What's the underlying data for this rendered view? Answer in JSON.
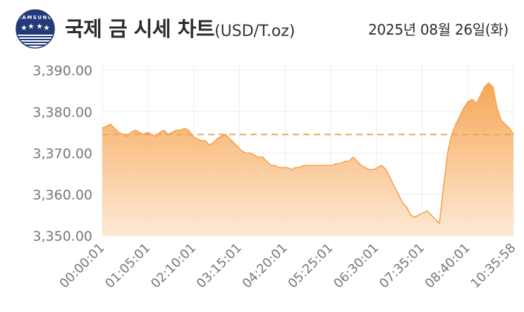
{
  "header": {
    "title": "국제 금 시세 차트",
    "unit": "(USD/T.oz)",
    "date": "2025년 08월 26일(화)",
    "logo_text": "SAMSUNG"
  },
  "colors": {
    "line": "#f4a34a",
    "fill_top": "#f6a24e",
    "fill_bottom": "#fde6cf",
    "reference": "#f0a050",
    "grid": "#ececec",
    "text": "#777777",
    "logo_blue": "#233a7a"
  },
  "chart_data": {
    "type": "area",
    "ylim": [
      3350,
      3392
    ],
    "yticks": [
      3350,
      3360,
      3370,
      3380,
      3390
    ],
    "ytick_labels": [
      "3,350.00",
      "3,360.00",
      "3,370.00",
      "3,380.00",
      "3,390.00"
    ],
    "xticks": [
      "00:00:01",
      "01:05:01",
      "02:10:01",
      "03:15:01",
      "04:20:01",
      "05:25:01",
      "06:30:01",
      "07:35:01",
      "08:40:01",
      "10:35:58"
    ],
    "reference_line": 3374.5,
    "grid": true,
    "x_index_range": [
      0,
      100
    ],
    "series": [
      {
        "x": [
          0,
          1,
          2,
          3,
          4,
          5,
          6,
          7,
          8,
          9,
          10,
          11,
          12,
          13,
          14,
          15,
          16,
          17,
          18,
          19,
          20,
          21,
          22,
          23,
          24,
          25,
          26,
          27,
          28,
          29,
          30,
          31,
          32,
          33,
          34,
          35,
          36,
          37,
          38,
          39,
          40,
          41,
          42,
          43,
          44,
          45,
          46,
          47,
          48,
          49,
          50,
          51,
          52,
          53,
          54,
          55,
          56,
          57,
          58,
          59,
          60,
          61,
          62,
          63,
          64,
          65,
          66,
          67,
          68,
          69,
          70,
          71,
          72,
          73,
          74,
          75,
          76,
          77,
          78,
          79,
          80,
          81,
          82,
          83,
          84,
          85,
          86,
          87,
          88,
          89,
          90,
          91,
          92,
          93,
          94,
          95,
          96,
          97,
          98,
          99,
          100
        ],
        "values": [
          3376,
          3376.5,
          3377,
          3376,
          3375,
          3374.5,
          3374,
          3375,
          3375.5,
          3375,
          3374.5,
          3375,
          3374.5,
          3374,
          3375,
          3375.5,
          3374.5,
          3375,
          3375.5,
          3375.5,
          3376,
          3375.5,
          3374,
          3373.5,
          3373,
          3373,
          3372,
          3372.5,
          3373.5,
          3374,
          3374.5,
          3373.5,
          3372.5,
          3371.5,
          3370.5,
          3370,
          3370,
          3369.5,
          3369,
          3369,
          3368,
          3367,
          3367,
          3366.5,
          3366.5,
          3366.5,
          3366,
          3366.5,
          3366.5,
          3367,
          3367,
          3367,
          3367,
          3367,
          3367,
          3367,
          3367,
          3367.5,
          3367.5,
          3368,
          3368,
          3369,
          3368,
          3367,
          3366.5,
          3366,
          3366,
          3366.5,
          3367,
          3366,
          3364,
          3362,
          3360,
          3358,
          3357,
          3355,
          3354.5,
          3355,
          3355.5,
          3356,
          3355,
          3354,
          3353,
          3362,
          3370,
          3374.5,
          3377,
          3379,
          3381,
          3382.5,
          3383,
          3382,
          3384,
          3386,
          3387,
          3386,
          3381,
          3378,
          3377,
          3376,
          3374.5
        ]
      }
    ]
  }
}
